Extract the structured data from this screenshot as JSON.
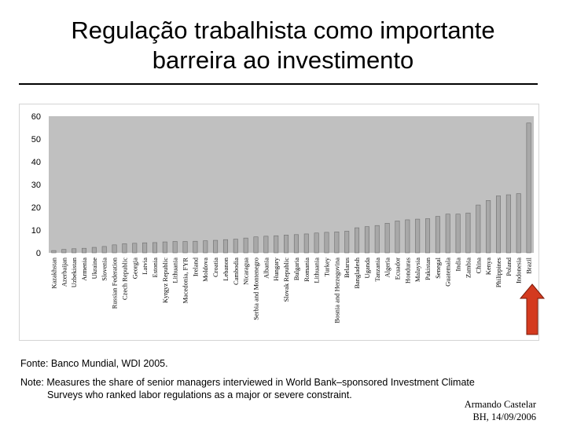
{
  "slide": {
    "title_line1": "Regulação trabalhista como importante",
    "title_line2": "barreira ao investimento",
    "source": "Fonte: Banco Mundial, WDI 2005.",
    "note_line1": "Note: Measures the share of senior managers interviewed in World Bank–sponsored Investment Climate",
    "note_line2": "Surveys who ranked labor regulations as a major or severe constraint.",
    "author_name": "Armando Castelar",
    "author_place_date": "BH, 14/09/2006"
  },
  "colors": {
    "plot_bg": "#c0c0c0",
    "bar_fill": "#a8a8a8",
    "bar_edge": "#6e6e6e",
    "arrow_fill": "#d43a1f",
    "arrow_edge": "#7a1a0a"
  },
  "chart_data": {
    "type": "bar",
    "ylim": [
      0,
      60
    ],
    "yticks": [
      0,
      10,
      20,
      30,
      40,
      50,
      60
    ],
    "grid": false,
    "categories": [
      "Kazakhstan",
      "Azerbaijan",
      "Uzbekistan",
      "Armenia",
      "Ukraine",
      "Slovenia",
      "Russian Federation",
      "Czech Republic",
      "Georgia",
      "Latvia",
      "Estonia",
      "Kyrgyz Republic",
      "Lithuania",
      "Macedonia, FYR",
      "Ireland",
      "Moldova",
      "Croatia",
      "Lebanon",
      "Cambodia",
      "Nicaragua",
      "Serbia and Montenegro",
      "Albania",
      "Hungary",
      "Slovak Republic",
      "Bulgaria",
      "Romania",
      "Lithuania",
      "Turkey",
      "Bosnia and Herzegovina",
      "Belarus",
      "Bangladesh",
      "Uganda",
      "Tanzania",
      "Algeria",
      "Ecuador",
      "Honduras",
      "Malaysia",
      "Pakistan",
      "Senegal",
      "Guatemala",
      "India",
      "Zambia",
      "China",
      "Kenya",
      "Philippines",
      "Poland",
      "Indonesia",
      "Brazil"
    ],
    "values": [
      1,
      1.5,
      1.8,
      2,
      2.4,
      2.8,
      3.5,
      4,
      4.2,
      4.4,
      4.5,
      4.8,
      5,
      5,
      5.1,
      5.3,
      5.5,
      5.8,
      6,
      6.5,
      7,
      7.3,
      7.5,
      7.8,
      8,
      8.3,
      8.7,
      9,
      9.2,
      9.5,
      11,
      11.5,
      12,
      13,
      14,
      14.5,
      14.8,
      15,
      16,
      17,
      17,
      17.5,
      21,
      23,
      25,
      25.5,
      26,
      57
    ],
    "highlight": "Brazil"
  }
}
